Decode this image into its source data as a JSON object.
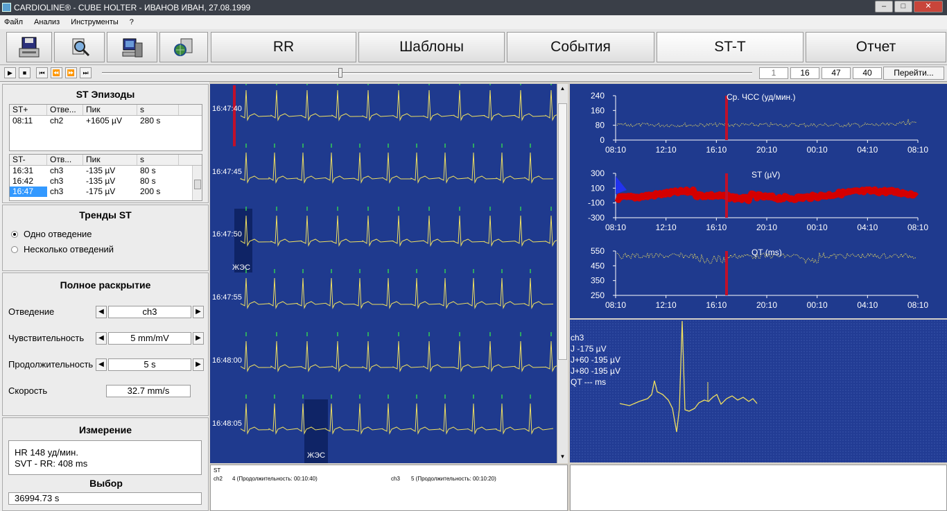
{
  "window": {
    "title": "CARDIOLINE® - CUBE HOLTER - ИВАНОВ ИВАН, 27.08.1999"
  },
  "menu": [
    "Файл",
    "Анализ",
    "Инструменты",
    "?"
  ],
  "toolbar": {
    "icons": [
      "save-disk-icon",
      "magnifier-icon",
      "computer-icon",
      "globe-computer-icon"
    ],
    "tabs": [
      "RR",
      "Шаблоны",
      "События",
      "ST-T",
      "Отчет"
    ]
  },
  "playback": {
    "boxes": [
      "1",
      "16",
      "47",
      "40"
    ],
    "goto_label": "Перейти..."
  },
  "st_episodes": {
    "title": "ST Эпизоды",
    "columns_plus": [
      "ST+",
      "Отве...",
      "Пик",
      "s"
    ],
    "rows_plus": [
      [
        "08:11",
        "ch2",
        "+1605 µV",
        "280 s"
      ]
    ],
    "columns_minus": [
      "ST-",
      "Отв...",
      "Пик",
      "s"
    ],
    "rows_minus": [
      [
        "16:31",
        "ch3",
        "-135 µV",
        "80 s"
      ],
      [
        "16:42",
        "ch3",
        "-135 µV",
        "80 s"
      ],
      [
        "16:47",
        "ch3",
        "-175 µV",
        "200 s"
      ]
    ]
  },
  "st_trends": {
    "title": "Тренды ST",
    "option1": "Одно отведение",
    "option2": "Несколько отведений"
  },
  "full_view": {
    "title": "Полное раскрытие",
    "lead_label": "Отведение",
    "lead_value": "ch3",
    "sens_label": "Чувствительность",
    "sens_value": "5 mm/mV",
    "dur_label": "Продолжительность",
    "dur_value": "5 s",
    "speed_label": "Скорость",
    "speed_value": "32.7 mm/s"
  },
  "measurement": {
    "title": "Измерение",
    "line1": "HR 148 уд/мин.",
    "line2": "SVT - RR: 408 ms"
  },
  "selection": {
    "title": "Выбор",
    "value": "36994.73 s"
  },
  "strips": {
    "times": [
      "16:47:40",
      "16:47:45",
      "16:47:50",
      "16:47:55",
      "16:48:00",
      "16:48:05"
    ],
    "event_label": "ЖЭС"
  },
  "trends": {
    "hr_title": "Ср. ЧСС (уд/мин.)",
    "hr_ticks": [
      "240",
      "160",
      "80",
      "0"
    ],
    "st_title": "ST (µV)",
    "st_ticks": [
      "300",
      "100",
      "-100",
      "-300"
    ],
    "qt_title": "QT (ms)",
    "qt_ticks": [
      "550",
      "450",
      "350",
      "250"
    ],
    "x_ticks": [
      "08:10",
      "12:10",
      "16:10",
      "20:10",
      "00:10",
      "04:10",
      "08:10"
    ]
  },
  "beat_detail": {
    "lead": "ch3",
    "j": "J -175 µV",
    "j60": "J+60 -195 µV",
    "j80": "J+80 -195 µV",
    "qt": "QT --- ms"
  },
  "bottom_log": {
    "header": "ST",
    "entry1_lead": "ch2",
    "entry1_text": "4  (Продолжительность: 00:10:40)",
    "entry2_lead": "ch3",
    "entry2_text": "5  (Продолжительность: 00:10:20)"
  },
  "colors": {
    "panel_blue": "#1f3a8e",
    "trace": "#f0e060",
    "st_trend": "#d40000",
    "marker": "#c0102a"
  }
}
